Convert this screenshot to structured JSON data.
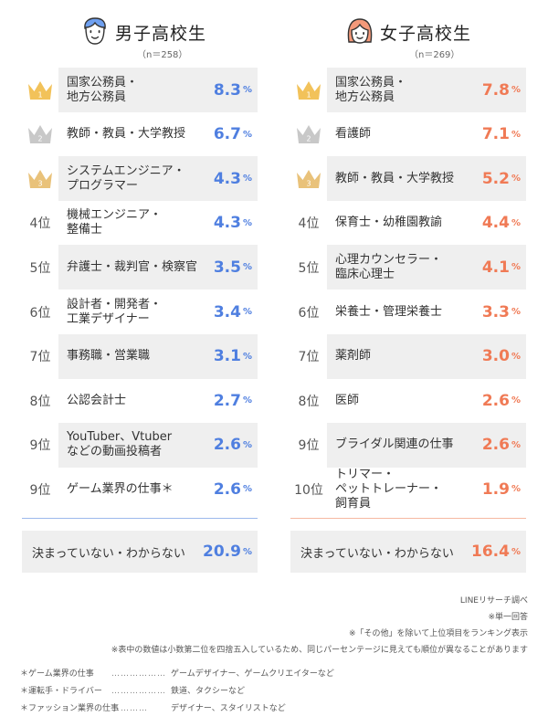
{
  "colors": {
    "boys_accent": "#4f7fe0",
    "girls_accent": "#f07a55",
    "gold": "#f2c25a",
    "silver": "#c8c8c8",
    "bronze": "#e9c27a"
  },
  "boys": {
    "title": "男子高校生",
    "n": "（n＝258）",
    "icon": "boy-face-icon",
    "rows": [
      {
        "rank": "1",
        "label": "国家公務員・\n地方公務員",
        "value": "8.3",
        "pct": "%"
      },
      {
        "rank": "2",
        "label": "教師・教員・大学教授",
        "value": "6.7",
        "pct": "%"
      },
      {
        "rank": "3",
        "label": "システムエンジニア・\nプログラマー",
        "value": "4.3",
        "pct": "%"
      },
      {
        "rank": "4位",
        "label": "機械エンジニア・\n整備士",
        "value": "4.3",
        "pct": "%"
      },
      {
        "rank": "5位",
        "label": "弁護士・裁判官・検察官",
        "value": "3.5",
        "pct": "%"
      },
      {
        "rank": "6位",
        "label": "設計者・開発者・\n工業デザイナー",
        "value": "3.4",
        "pct": "%"
      },
      {
        "rank": "7位",
        "label": "事務職・営業職",
        "value": "3.1",
        "pct": "%"
      },
      {
        "rank": "8位",
        "label": "公認会計士",
        "value": "2.7",
        "pct": "%"
      },
      {
        "rank": "9位",
        "label": "YouTuber、Vtuber\nなどの動画投稿者",
        "value": "2.6",
        "pct": "%"
      },
      {
        "rank": "9位",
        "label": "ゲーム業界の仕事＊",
        "value": "2.6",
        "pct": "%"
      }
    ],
    "undecided": {
      "label": "決まっていない・わからない",
      "value": "20.9",
      "pct": "%"
    }
  },
  "girls": {
    "title": "女子高校生",
    "n": "（n＝269）",
    "icon": "girl-face-icon",
    "rows": [
      {
        "rank": "1",
        "label": "国家公務員・\n地方公務員",
        "value": "7.8",
        "pct": "%"
      },
      {
        "rank": "2",
        "label": "看護師",
        "value": "7.1",
        "pct": "%"
      },
      {
        "rank": "3",
        "label": "教師・教員・大学教授",
        "value": "5.2",
        "pct": "%"
      },
      {
        "rank": "4位",
        "label": "保育士・幼稚園教諭",
        "value": "4.4",
        "pct": "%"
      },
      {
        "rank": "5位",
        "label": "心理カウンセラー・\n臨床心理士",
        "value": "4.1",
        "pct": "%"
      },
      {
        "rank": "6位",
        "label": "栄養士・管理栄養士",
        "value": "3.3",
        "pct": "%"
      },
      {
        "rank": "7位",
        "label": "薬剤師",
        "value": "3.0",
        "pct": "%"
      },
      {
        "rank": "8位",
        "label": "医師",
        "value": "2.6",
        "pct": "%"
      },
      {
        "rank": "9位",
        "label": "ブライダル関連の仕事",
        "value": "2.6",
        "pct": "%"
      },
      {
        "rank": "10位",
        "label": "トリマー・\nペットトレーナー・\n飼育員",
        "value": "1.9",
        "pct": "%"
      }
    ],
    "undecided": {
      "label": "決まっていない・わからない",
      "value": "16.4",
      "pct": "%"
    }
  },
  "notes": [
    "LINEリサーチ調べ",
    "※単一回答",
    "※「その他」を除いて上位項目をランキング表示",
    "※表中の数値は小数第二位を四捨五入しているため、同じパーセンテージに見えても順位が異なることがあります"
  ],
  "footnotes": [
    {
      "term": "＊ゲーム業界の仕事",
      "dots": "……………………",
      "desc": "ゲームデザイナー、ゲームクリエイターなど"
    },
    {
      "term": "＊運転手・ドライバー",
      "dots": "……………………",
      "desc": "鉄道、タクシーなど"
    },
    {
      "term": "＊ファッション業界の仕事",
      "dots": "…………",
      "desc": "デザイナー、スタイリストなど"
    }
  ],
  "chart_data": [
    {
      "type": "table",
      "title": "男子高校生",
      "subtitle": "（n＝258）",
      "categories": [
        "国家公務員・地方公務員",
        "教師・教員・大学教授",
        "システムエンジニア・プログラマー",
        "機械エンジニア・整備士",
        "弁護士・裁判官・検察官",
        "設計者・開発者・工業デザイナー",
        "事務職・営業職",
        "公認会計士",
        "YouTuber、Vtuberなどの動画投稿者",
        "ゲーム業界の仕事＊",
        "決まっていない・わからない"
      ],
      "values": [
        8.3,
        6.7,
        4.3,
        4.3,
        3.5,
        3.4,
        3.1,
        2.7,
        2.6,
        2.6,
        20.9
      ]
    },
    {
      "type": "table",
      "title": "女子高校生",
      "subtitle": "（n＝269）",
      "categories": [
        "国家公務員・地方公務員",
        "看護師",
        "教師・教員・大学教授",
        "保育士・幼稚園教諭",
        "心理カウンセラー・臨床心理士",
        "栄養士・管理栄養士",
        "薬剤師",
        "医師",
        "ブライダル関連の仕事",
        "トリマー・ペットトレーナー・飼育員",
        "決まっていない・わからない"
      ],
      "values": [
        7.8,
        7.1,
        5.2,
        4.4,
        4.1,
        3.3,
        3.0,
        2.6,
        2.6,
        1.9,
        16.4
      ]
    }
  ]
}
